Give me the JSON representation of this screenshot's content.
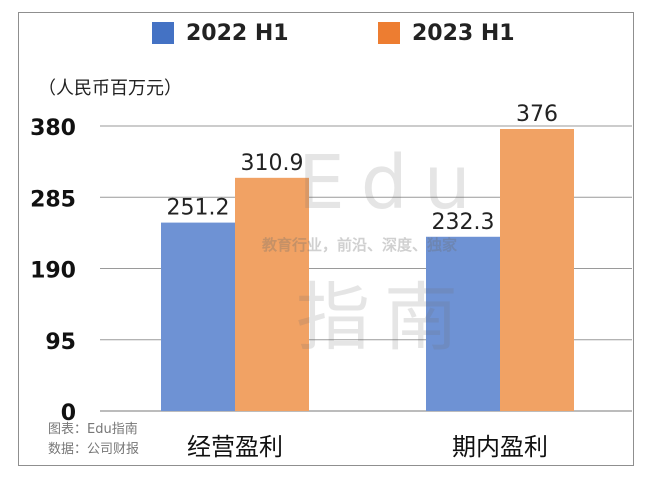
{
  "legend": [
    {
      "label": "2022 H1",
      "color": "#4472c4"
    },
    {
      "label": "2023 H1",
      "color": "#ed7d31"
    }
  ],
  "unit_label": "（人民币百万元）",
  "watermark": {
    "brand_latin": "Edu",
    "slogan": "教育行业，前沿、深度、独家",
    "brand_cjk": "指南"
  },
  "source": {
    "line1": "图表：Edu指南",
    "line2": "数据：公司财报"
  },
  "chart_data": {
    "type": "bar",
    "categories": [
      "经营盈利",
      "期内盈利"
    ],
    "series": [
      {
        "name": "2022 H1",
        "values": [
          251.2,
          232.3
        ],
        "color": "#6e92d4"
      },
      {
        "name": "2023 H1",
        "values": [
          310.9,
          376
        ],
        "color": "#f1a264"
      }
    ],
    "ylim": [
      0,
      380
    ],
    "yticks": [
      0,
      95,
      190,
      285,
      380
    ],
    "data_labels": [
      [
        "251.2",
        "232.3"
      ],
      [
        "310.9",
        "376"
      ]
    ],
    "grid": true,
    "legend_position": "top"
  }
}
